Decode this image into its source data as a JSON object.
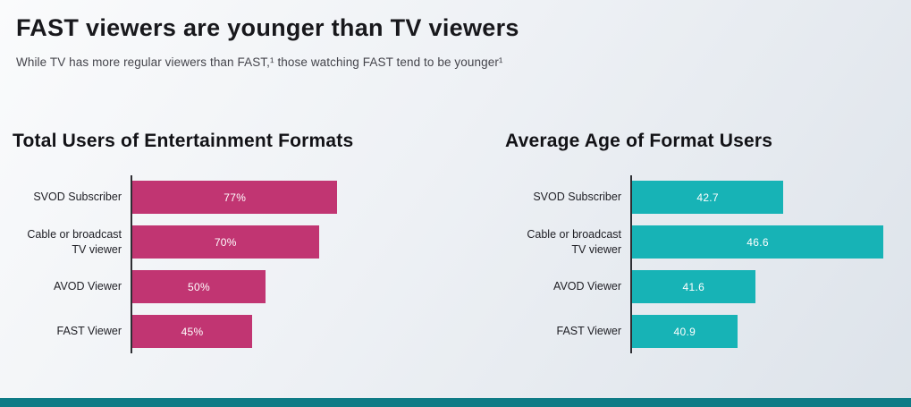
{
  "header": {
    "title": "FAST viewers are younger than TV viewers",
    "subtitle": "While TV has more regular viewers than FAST,¹ those watching FAST tend to be younger¹"
  },
  "chart_data": [
    {
      "type": "bar",
      "orientation": "horizontal",
      "title": "Total Users of Entertainment Formats",
      "categories": [
        "SVOD Subscriber",
        "Cable or broadcast\nTV viewer",
        "AVOD Viewer",
        "FAST Viewer"
      ],
      "values": [
        77,
        70,
        50,
        45
      ],
      "value_labels": [
        "77%",
        "70%",
        "50%",
        "45%"
      ],
      "xlim": [
        0,
        100
      ],
      "bar_color": "#c13572",
      "value_label_color": "#ffffff",
      "grid": false,
      "legend": "none"
    },
    {
      "type": "bar",
      "orientation": "horizontal",
      "title": "Average Age of Format Users",
      "categories": [
        "SVOD Subscriber",
        "Cable or broadcast\nTV viewer",
        "AVOD Viewer",
        "FAST Viewer"
      ],
      "values": [
        42.7,
        46.6,
        41.6,
        40.9
      ],
      "value_labels": [
        "42.7",
        "46.6",
        "41.6",
        "40.9"
      ],
      "xlim": [
        36.8,
        46.7
      ],
      "bar_color": "#17b3b6",
      "value_label_color": "#ffffff",
      "grid": false,
      "legend": "none"
    }
  ],
  "footer": {
    "accent_color": "#0e7b86"
  }
}
